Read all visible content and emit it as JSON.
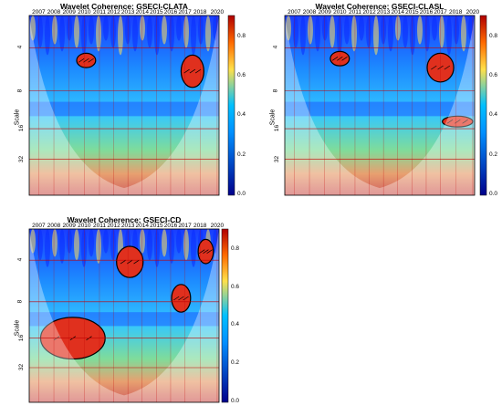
{
  "chart_data": [
    {
      "type": "heatmap",
      "title": "Wavelet Coherence: GSECI-CLATA",
      "xlabel": "",
      "ylabel": "Scale",
      "x_ticks": [
        "2007",
        "2008",
        "2009",
        "2010",
        "2011",
        "2012",
        "2013",
        "2014",
        "2015",
        "2016",
        "2017",
        "2018",
        "2020"
      ],
      "y_ticks": [
        "4",
        "8",
        "16",
        "32"
      ],
      "colorbar_ticks": [
        "0.0",
        "0.2",
        "0.4",
        "0.6",
        "0.8"
      ],
      "colorbar_range": [
        0,
        0.9
      ],
      "significant_regions": [
        {
          "x_center": 2009.6,
          "scale": 4.3,
          "coherence": 0.85
        },
        {
          "x_center": 2017.8,
          "scale": 5.5,
          "coherence": 0.9
        }
      ]
    },
    {
      "type": "heatmap",
      "title": "Wavelet Coherence: GSECI-CLASL",
      "xlabel": "",
      "ylabel": "Scale",
      "x_ticks": [
        "2007",
        "2008",
        "2009",
        "2010",
        "2011",
        "2012",
        "2013",
        "2014",
        "2015",
        "2016",
        "2017",
        "2018",
        "2020"
      ],
      "y_ticks": [
        "4",
        "8",
        "16",
        "32"
      ],
      "colorbar_ticks": [
        "0.0",
        "0.2",
        "0.4",
        "0.6",
        "0.8"
      ],
      "colorbar_range": [
        0,
        0.9
      ],
      "significant_regions": [
        {
          "x_center": 2009.7,
          "scale": 4.2,
          "coherence": 0.85
        },
        {
          "x_center": 2017.5,
          "scale": 5.0,
          "coherence": 0.9
        },
        {
          "x_center": 2018.5,
          "scale": 15.5,
          "coherence": 0.85
        }
      ]
    },
    {
      "type": "heatmap",
      "title": "Wavelet Coherence: GSECI-CD",
      "xlabel": "",
      "ylabel": "Scale",
      "x_ticks": [
        "2007",
        "2008",
        "2009",
        "2010",
        "2011",
        "2012",
        "2013",
        "2014",
        "2015",
        "2016",
        "2017",
        "2018",
        "2020"
      ],
      "y_ticks": [
        "4",
        "8",
        "16",
        "32"
      ],
      "colorbar_ticks": [
        "0.0",
        "0.2",
        "0.4",
        "0.6",
        "0.8"
      ],
      "colorbar_range": [
        0,
        0.9
      ],
      "significant_regions": [
        {
          "x_center": 2009.3,
          "scale": 15.0,
          "coherence": 0.95
        },
        {
          "x_center": 2013.2,
          "scale": 4.3,
          "coherence": 0.9
        },
        {
          "x_center": 2017.0,
          "scale": 7.0,
          "coherence": 0.85
        },
        {
          "x_center": 2018.0,
          "scale": 4.0,
          "coherence": 0.85
        }
      ]
    }
  ],
  "colors": {
    "low": "#00008b",
    "mid": "#00c0ff",
    "high": "#b00000",
    "cone": "#ffffff"
  }
}
